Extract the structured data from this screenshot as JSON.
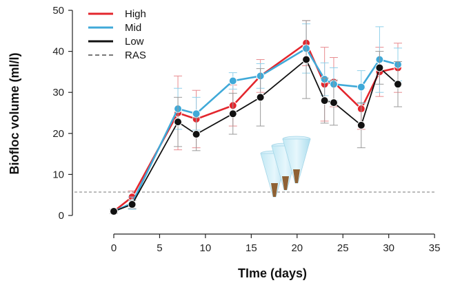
{
  "chart_data": {
    "type": "line",
    "xlabel": "TIme (days)",
    "ylabel": "Biofloc volume (ml/l)",
    "xlim": [
      -4,
      35
    ],
    "ylim": [
      -3,
      50
    ],
    "xticks": [
      0,
      5,
      10,
      15,
      20,
      25,
      30,
      35
    ],
    "yticks": [
      0,
      10,
      20,
      30,
      40,
      50
    ],
    "legend_position": "top-left",
    "x": [
      0,
      2,
      7,
      9,
      13,
      16,
      21,
      23,
      24,
      27,
      29,
      31
    ],
    "series": [
      {
        "name": "High",
        "color": "#e3262d",
        "values": [
          1,
          4.5,
          25,
          23.5,
          26.8,
          34,
          42,
          32,
          32.5,
          26,
          35,
          36
        ],
        "err": [
          0.5,
          1.5,
          9,
          7,
          5,
          4,
          5.5,
          9,
          6,
          5,
          6,
          6
        ]
      },
      {
        "name": "Mid",
        "color": "#3fa9d8",
        "values": [
          1,
          3,
          26,
          24.8,
          32.8,
          34,
          40.7,
          33.2,
          32,
          31.3,
          38,
          36.8
        ],
        "err": [
          0.5,
          1.5,
          5,
          4,
          2,
          3,
          6,
          4,
          4,
          4,
          8,
          4
        ]
      },
      {
        "name": "Low",
        "color": "#111111",
        "values": [
          1,
          2.7,
          22.8,
          19.8,
          24.8,
          28.8,
          38,
          28,
          27.5,
          22,
          36,
          32
        ],
        "err": [
          0.5,
          1,
          6,
          4,
          5,
          7,
          9.5,
          5.5,
          5.5,
          5.5,
          4,
          5.5
        ]
      }
    ],
    "reference_lines": [
      {
        "name": "RAS",
        "y": 5.7,
        "style": "dashed",
        "color": "#777777"
      }
    ],
    "grid": false
  },
  "icons": [
    "imhoff-cone-icon"
  ]
}
